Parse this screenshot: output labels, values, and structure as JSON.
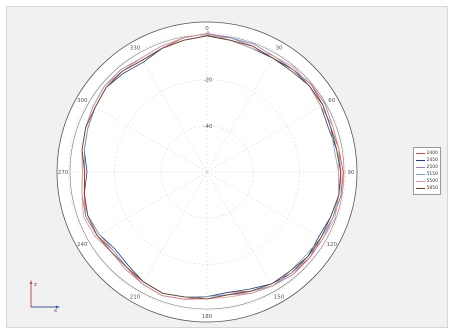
{
  "chart_data": {
    "type": "polar-line",
    "title": "",
    "angle_ticks": [
      "0",
      "30",
      "60",
      "90",
      "120",
      "150",
      "180",
      "210",
      "240",
      "270",
      "300",
      "330"
    ],
    "radial_ticks": [
      "-40",
      "-20",
      "0"
    ],
    "rlim": [
      -60,
      5
    ],
    "grid": true,
    "legend_position": "right",
    "theta_step_deg": 10,
    "series": [
      {
        "name": "2400",
        "color": "#c0504d",
        "values": [
          0,
          -1,
          -2,
          -3,
          -2,
          -1,
          -2,
          -3,
          -2,
          -1,
          -1,
          -2,
          -3,
          -2,
          -2,
          -3,
          -5,
          -7,
          -6,
          -4,
          -3,
          -4,
          -6,
          -7,
          -5,
          -4,
          -6,
          -7,
          -5,
          -4,
          -3,
          -2,
          -3,
          -4,
          -3,
          -1
        ]
      },
      {
        "name": "2450",
        "color": "#1f3d7a",
        "values": [
          -1,
          -2,
          -3,
          -3,
          -2,
          -2,
          -3,
          -4,
          -3,
          -2,
          -2,
          -3,
          -4,
          -3,
          -3,
          -4,
          -6,
          -7,
          -6,
          -5,
          -4,
          -5,
          -7,
          -8,
          -6,
          -5,
          -6,
          -8,
          -6,
          -5,
          -4,
          -3,
          -4,
          -5,
          -3,
          -2
        ]
      },
      {
        "name": "2500",
        "color": "#9b7bb3",
        "values": [
          0,
          -1,
          -1,
          -2,
          -2,
          -1,
          -1,
          -2,
          -2,
          -2,
          -1,
          -2,
          -2,
          -2,
          -3,
          -3,
          -4,
          -6,
          -5,
          -4,
          -3,
          -4,
          -5,
          -6,
          -5,
          -4,
          -5,
          -6,
          -5,
          -4,
          -3,
          -2,
          -2,
          -3,
          -2,
          -1
        ]
      },
      {
        "name": "5150",
        "color": "#7aa0c8",
        "values": [
          -1,
          -1,
          -2,
          -3,
          -3,
          -2,
          -2,
          -3,
          -4,
          -3,
          -2,
          -2,
          -3,
          -4,
          -4,
          -3,
          -5,
          -6,
          -6,
          -5,
          -4,
          -5,
          -6,
          -7,
          -6,
          -5,
          -6,
          -7,
          -6,
          -5,
          -4,
          -3,
          -3,
          -4,
          -3,
          -2
        ]
      },
      {
        "name": "5500",
        "color": "#d99694",
        "values": [
          0,
          -2,
          -3,
          -2,
          -1,
          -2,
          -3,
          -2,
          -2,
          -3,
          -2,
          -1,
          -2,
          -3,
          -2,
          -3,
          -4,
          -5,
          -5,
          -4,
          -3,
          -4,
          -5,
          -6,
          -4,
          -3,
          -5,
          -6,
          -5,
          -4,
          -3,
          -2,
          -3,
          -3,
          -2,
          -1
        ]
      },
      {
        "name": "5850",
        "color": "#6b4226",
        "values": [
          -1,
          -2,
          -2,
          -3,
          -3,
          -2,
          -2,
          -3,
          -3,
          -2,
          -2,
          -3,
          -3,
          -3,
          -4,
          -4,
          -5,
          -6,
          -5,
          -5,
          -4,
          -5,
          -6,
          -6,
          -5,
          -5,
          -6,
          -7,
          -5,
          -4,
          -4,
          -3,
          -3,
          -4,
          -3,
          -2
        ]
      }
    ]
  },
  "axes_icon": {
    "z_label": "z",
    "x_label": "x"
  }
}
